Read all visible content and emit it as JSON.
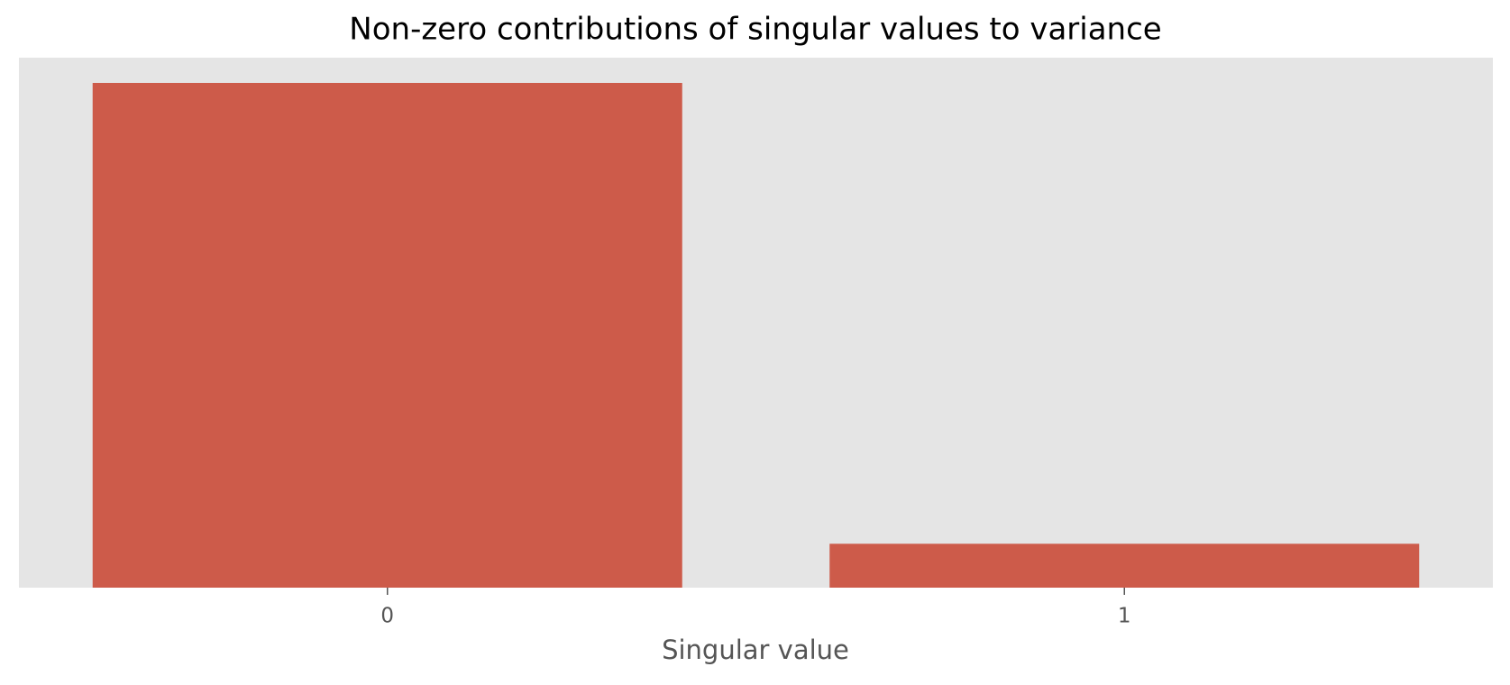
{
  "chart_data": {
    "type": "bar",
    "title": "Non-zero contributions of singular values to variance",
    "x_label": "Singular value",
    "categories": [
      "0",
      "1"
    ],
    "values": [
      0.92,
      0.08
    ],
    "color": "#cd5b4a",
    "ylim": [
      0,
      0.966
    ],
    "background": "#e5e5e5"
  }
}
